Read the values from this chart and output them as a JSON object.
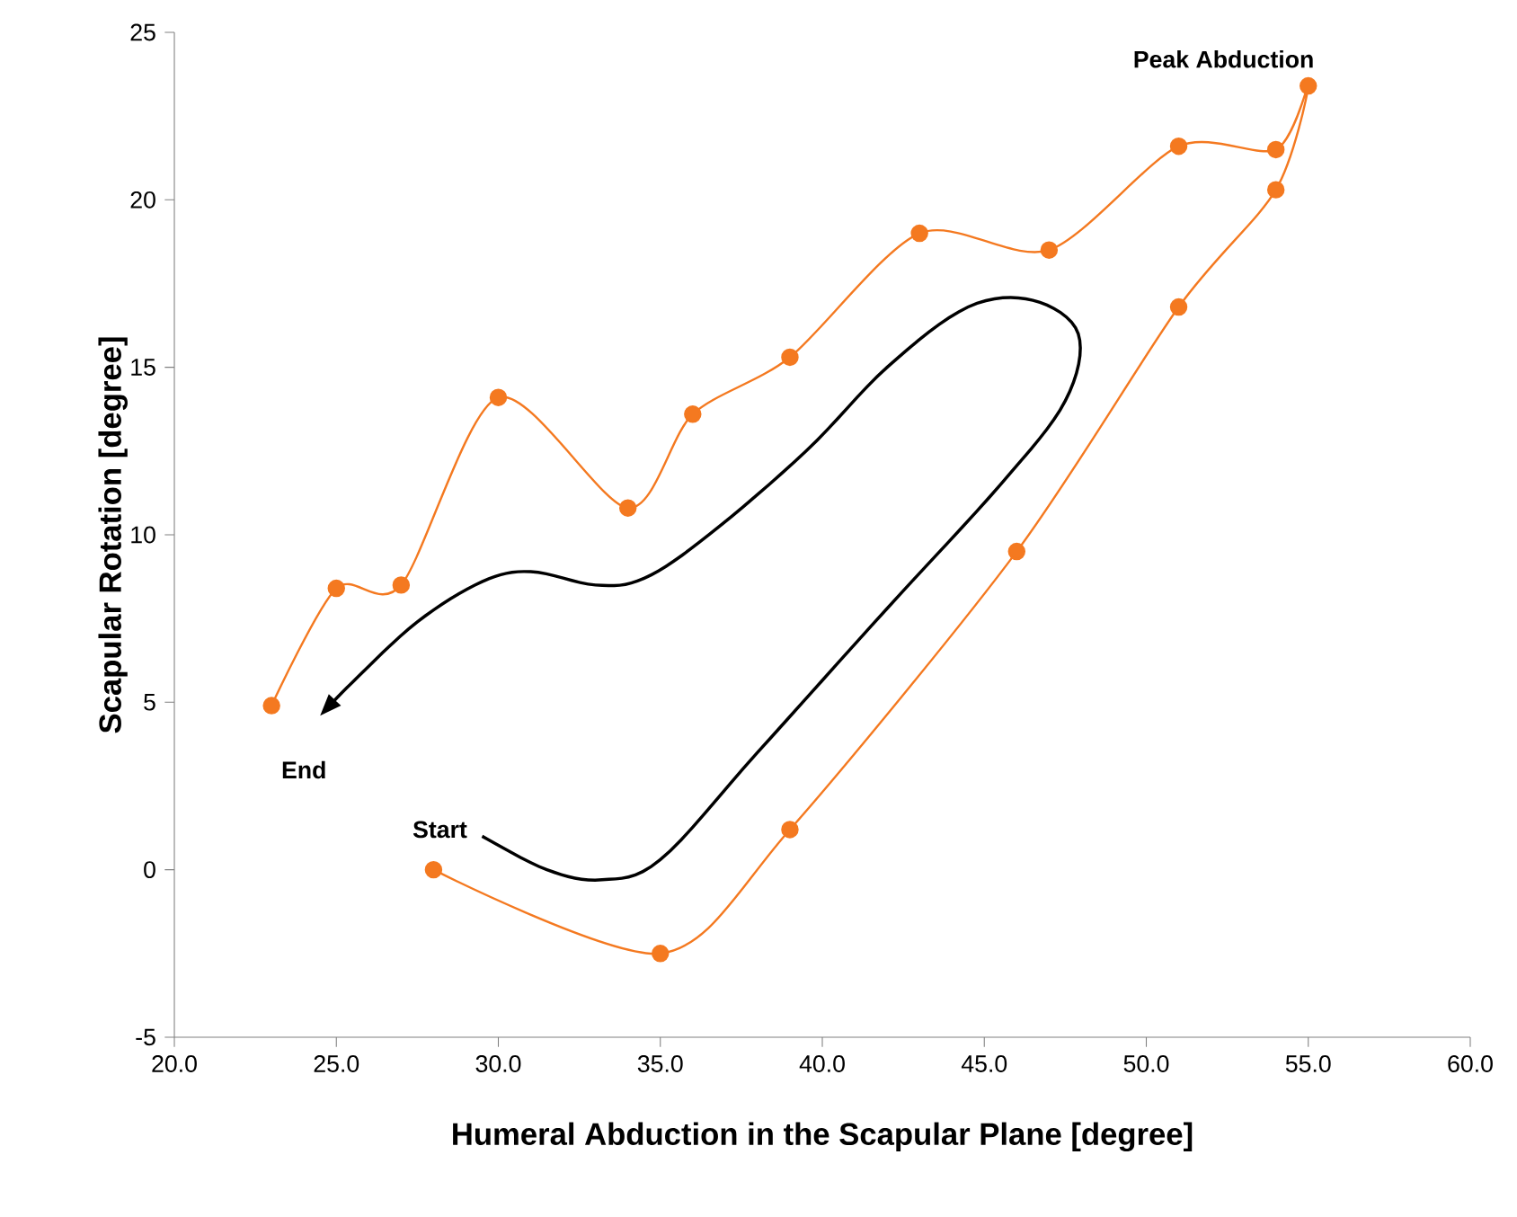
{
  "chart_data": {
    "type": "line",
    "xlabel": "Humeral Abduction in the Scapular Plane [degree]",
    "ylabel": "Scapular Rotation [degree]",
    "series": [
      {
        "color": "#f47920",
        "x": [
          28,
          35,
          39,
          46,
          51,
          54,
          55,
          54,
          51,
          47,
          43,
          39,
          36,
          34,
          30,
          27,
          25,
          23
        ],
        "values": [
          0,
          -2.5,
          1.2,
          9.5,
          16.8,
          20.3,
          23.4,
          21.5,
          21.6,
          18.5,
          19.0,
          15.3,
          13.6,
          10.8,
          14.1,
          8.5,
          8.4,
          4.9
        ]
      }
    ],
    "xlim": [
      20,
      60
    ],
    "xticks": [
      {
        "value": 20,
        "label": "20.0"
      },
      {
        "value": 25,
        "label": "25.0"
      },
      {
        "value": 30,
        "label": "30.0"
      },
      {
        "value": 35,
        "label": "35.0"
      },
      {
        "value": 40,
        "label": "40.0"
      },
      {
        "value": 45,
        "label": "45.0"
      },
      {
        "value": 50,
        "label": "50.0"
      },
      {
        "value": 55,
        "label": "55.0"
      },
      {
        "value": 60,
        "label": "60.0"
      }
    ],
    "ylim": [
      -5,
      25
    ],
    "yticks": [
      -5,
      0,
      5,
      10,
      15,
      20,
      25
    ],
    "marker": "circle",
    "annotations": [
      {
        "text": "Peak Abduction",
        "x": 55,
        "y": 23.4
      },
      "Start",
      "End"
    ]
  }
}
